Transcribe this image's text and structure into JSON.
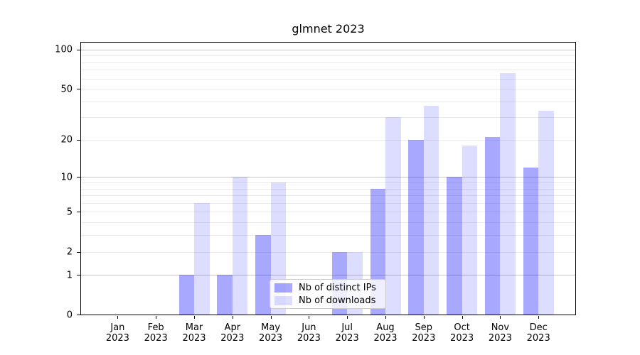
{
  "title": "glmnet 2023",
  "chart_data": {
    "type": "bar",
    "title": "glmnet 2023",
    "categories": [
      "Jan 2023",
      "Feb 2023",
      "Mar 2023",
      "Apr 2023",
      "May 2023",
      "Jun 2023",
      "Jul 2023",
      "Aug 2023",
      "Sep 2023",
      "Oct 2023",
      "Nov 2023",
      "Dec 2023"
    ],
    "x_tick_months": [
      "Jan",
      "Feb",
      "Mar",
      "Apr",
      "May",
      "Jun",
      "Jul",
      "Aug",
      "Sep",
      "Oct",
      "Nov",
      "Dec"
    ],
    "x_tick_year": "2023",
    "series": [
      {
        "name": "Nb of distinct IPs",
        "color": "rgba(0,0,255,0.34)",
        "values": [
          0,
          0,
          1,
          1,
          3,
          0,
          2,
          8,
          20,
          10,
          21,
          12
        ]
      },
      {
        "name": "Nb of downloads",
        "color": "rgba(0,0,255,0.135)",
        "values": [
          0,
          0,
          6,
          10,
          9,
          0,
          2,
          30,
          37,
          18,
          66,
          34
        ]
      }
    ],
    "yscale": "log10(1+y)",
    "ylim": [
      0,
      115
    ],
    "yticks": [
      0,
      1,
      2,
      5,
      10,
      20,
      50,
      100
    ],
    "grid": {
      "major_values": [
        1,
        10,
        100
      ],
      "minor_values": [
        2,
        3,
        4,
        5,
        6,
        7,
        8,
        9,
        20,
        30,
        40,
        50,
        60,
        70,
        80,
        90
      ],
      "major_color": "#c6c6c6",
      "minor_color": "#ebebeb"
    },
    "legend_position": "lower center",
    "bar_width_fraction": 0.4
  },
  "legend": {
    "items": [
      {
        "label": "Nb of distinct IPs",
        "swatch_color": "rgba(0,0,255,0.34)"
      },
      {
        "label": "Nb of downloads",
        "swatch_color": "rgba(0,0,255,0.135)"
      }
    ]
  }
}
